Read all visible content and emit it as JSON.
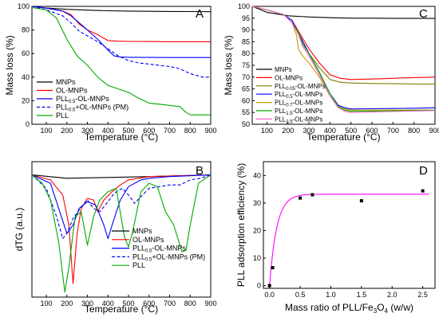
{
  "chart_data": [
    {
      "panel": "A",
      "type": "line",
      "xlabel": "Temperature (°C)",
      "ylabel": "Mass loss (%)",
      "xlim": [
        30,
        900
      ],
      "ylim": [
        0,
        100
      ],
      "xticks": [
        100,
        200,
        300,
        400,
        500,
        600,
        700,
        800,
        900
      ],
      "yticks": [
        0,
        20,
        40,
        60,
        80,
        100
      ],
      "legend_position": "bottom-left",
      "series": [
        {
          "name": "MNPs",
          "color": "#000000",
          "dash": false,
          "x": [
            30,
            100,
            200,
            300,
            400,
            500,
            600,
            700,
            800,
            900
          ],
          "y": [
            100,
            98.6,
            97.5,
            96.8,
            96.3,
            96,
            95.8,
            95.7,
            95.6,
            95.5
          ]
        },
        {
          "name": "OL-MNPs",
          "color": "#ff0000",
          "dash": false,
          "x": [
            30,
            100,
            180,
            220,
            260,
            300,
            350,
            400,
            450,
            500,
            600,
            700,
            800,
            900
          ],
          "y": [
            100,
            98.5,
            96,
            93,
            85,
            80,
            76,
            71,
            70.5,
            70.3,
            70.2,
            70,
            70,
            70
          ]
        },
        {
          "name": "PLL0.5-OL-MNPs",
          "name_main": "PLL",
          "name_sub": "0.5",
          "name_tail": "-OL-MNPs",
          "color": "#0000ff",
          "dash": false,
          "x": [
            30,
            100,
            180,
            220,
            260,
            300,
            350,
            400,
            430,
            460,
            500,
            600,
            700,
            800,
            900
          ],
          "y": [
            100,
            98.5,
            96,
            92,
            86,
            80,
            72,
            63,
            58,
            57,
            56.8,
            56.7,
            56.6,
            56.6,
            56.6
          ]
        },
        {
          "name": "PLL0.5+OL-MNPs (PM)",
          "name_main": "PLL",
          "name_sub": "0.5",
          "name_tail": "+OL-MNPs (PM)",
          "color": "#0000ff",
          "dash": true,
          "x": [
            30,
            100,
            180,
            220,
            260,
            300,
            350,
            400,
            450,
            500,
            550,
            600,
            650,
            700,
            750,
            800,
            860,
            900
          ],
          "y": [
            100,
            97,
            92,
            86,
            79,
            75,
            70,
            64,
            58,
            54,
            52,
            51,
            50,
            49,
            47,
            43,
            40,
            40
          ]
        },
        {
          "name": "PLL",
          "color": "#00aa00",
          "dash": false,
          "x": [
            30,
            100,
            150,
            200,
            250,
            300,
            350,
            400,
            450,
            500,
            550,
            600,
            650,
            700,
            750,
            780,
            800,
            900
          ],
          "y": [
            99,
            97,
            90,
            72,
            58,
            50,
            40,
            33,
            30,
            27,
            22,
            18,
            17,
            16,
            15,
            10,
            8,
            8
          ]
        }
      ]
    },
    {
      "panel": "B",
      "type": "line",
      "xlabel": "Temperature (°C)",
      "ylabel": "dTG (a.u.)",
      "xlim": [
        30,
        900
      ],
      "xticks": [
        100,
        200,
        300,
        400,
        500,
        600,
        700,
        800,
        900
      ],
      "legend_position": "bottom-right",
      "series": [
        {
          "name": "MNPs",
          "color": "#000000",
          "dash": false,
          "x": [
            30,
            200,
            400,
            600,
            900
          ],
          "y": [
            0,
            -0.2,
            -0.15,
            -0.1,
            0
          ]
        },
        {
          "name": "OL-MNPs",
          "color": "#ff0000",
          "dash": false,
          "x": [
            30,
            120,
            180,
            210,
            230,
            250,
            270,
            300,
            330,
            350,
            380,
            420,
            460,
            500,
            600,
            900
          ],
          "y": [
            0,
            -0.3,
            -1.2,
            -3,
            -6.5,
            -3.5,
            -2,
            -1.4,
            -1.5,
            -2.2,
            -1.5,
            -1,
            -0.6,
            -0.3,
            -0.1,
            0
          ]
        },
        {
          "name": "PLL0.5-OL-MNPs",
          "name_main": "PLL",
          "name_sub": "0.5",
          "name_tail": "-OL-MNPs",
          "color": "#0000ff",
          "dash": false,
          "x": [
            30,
            120,
            160,
            200,
            230,
            260,
            300,
            340,
            380,
            400,
            420,
            460,
            500,
            560,
            600,
            700,
            900
          ],
          "y": [
            0,
            -0.5,
            -2,
            -3.5,
            -3,
            -2,
            -1.6,
            -1.8,
            -3,
            -3.8,
            -3,
            -1.5,
            -0.7,
            -0.3,
            -0.2,
            -0.1,
            0
          ]
        },
        {
          "name": "PLL0.5+OL-MNPs (PM)",
          "name_main": "PLL",
          "name_sub": "0.5",
          "name_tail": "+OL-MNPs (PM)",
          "color": "#0000ff",
          "dash": true,
          "x": [
            30,
            100,
            150,
            180,
            200,
            230,
            260,
            300,
            330,
            360,
            400,
            430,
            470,
            500,
            530,
            560,
            600,
            650,
            700,
            750,
            800,
            850,
            900
          ],
          "y": [
            0,
            -0.8,
            -2.5,
            -3.8,
            -3.5,
            -2.6,
            -2.1,
            -1.5,
            -2,
            -2.2,
            -1.6,
            -1.1,
            -0.8,
            -1.2,
            -1.7,
            -1.3,
            -0.8,
            -0.7,
            -0.6,
            -0.6,
            -0.3,
            -0.2,
            0
          ]
        },
        {
          "name": "PLL",
          "color": "#00aa00",
          "dash": false,
          "x": [
            30,
            80,
            120,
            160,
            190,
            210,
            240,
            270,
            300,
            330,
            360,
            400,
            440,
            480,
            500,
            520,
            560,
            600,
            640,
            680,
            720,
            760,
            780,
            800,
            840,
            900
          ],
          "y": [
            0,
            -0.5,
            -1.5,
            -4,
            -7,
            -5.5,
            -2.5,
            -2.2,
            -4.2,
            -2.5,
            -1.5,
            -1,
            -0.8,
            -3.7,
            -4.3,
            -3.4,
            -1,
            -0.5,
            -0.7,
            -2.2,
            -3,
            -4.6,
            -4.5,
            -3,
            -0.5,
            0
          ]
        }
      ]
    },
    {
      "panel": "C",
      "type": "line",
      "xlabel": "Temperature (°C)",
      "ylabel": "Mass loss (%)",
      "xlim": [
        30,
        900
      ],
      "ylim": [
        50,
        100
      ],
      "xticks": [
        100,
        200,
        300,
        400,
        500,
        600,
        700,
        800,
        900
      ],
      "yticks": [
        50,
        55,
        60,
        65,
        70,
        75,
        80,
        85,
        90,
        95,
        100
      ],
      "legend_position": "bottom-left",
      "series": [
        {
          "name": "MNPs",
          "color": "#000000",
          "x": [
            30,
            100,
            200,
            300,
            400,
            500,
            600,
            700,
            800,
            900
          ],
          "y": [
            100,
            97.5,
            96,
            95.5,
            95.2,
            95,
            95,
            94.9,
            94.9,
            94.9
          ]
        },
        {
          "name": "OL-MNPs",
          "color": "#ff0000",
          "x": [
            30,
            100,
            180,
            220,
            260,
            300,
            350,
            400,
            450,
            500,
            600,
            700,
            800,
            900
          ],
          "y": [
            100,
            98.5,
            96.5,
            94,
            88,
            82,
            76,
            71,
            69.5,
            69,
            69.2,
            69.5,
            69.8,
            70
          ]
        },
        {
          "name": "PLL0.05-OL-MNPs",
          "name_main": "PLL",
          "name_sub": "0.05",
          "name_tail": "-OL-MNPs",
          "color": "#808000",
          "x": [
            30,
            100,
            180,
            220,
            260,
            300,
            350,
            400,
            450,
            500,
            600,
            700,
            800,
            900
          ],
          "y": [
            100,
            98.5,
            96.5,
            94,
            87,
            80,
            74,
            69,
            67.8,
            67.5,
            67.3,
            67.2,
            67.1,
            67
          ]
        },
        {
          "name": "PLL0.5-OL-MNPs",
          "name_main": "PLL",
          "name_sub": "0.5",
          "name_tail": "-OL-MNPs",
          "color": "#0000ff",
          "x": [
            30,
            100,
            180,
            220,
            260,
            300,
            350,
            400,
            440,
            470,
            500,
            600,
            700,
            800,
            900
          ],
          "y": [
            100,
            98.5,
            96.5,
            94,
            87,
            80,
            72,
            63,
            58,
            57,
            56.5,
            56.6,
            56.7,
            56.8,
            57
          ]
        },
        {
          "name": "PLL0.7-OL-MNPs",
          "name_main": "PLL",
          "name_sub": "0.7",
          "name_tail": "-OL-MNPs",
          "color": "#cc9900",
          "x": [
            30,
            100,
            180,
            220,
            240,
            250,
            270,
            300,
            350,
            400,
            440,
            470,
            500,
            600,
            700,
            800,
            900
          ],
          "y": [
            100,
            98.5,
            96.5,
            93,
            88,
            82,
            79,
            76,
            70,
            62,
            57.5,
            56.5,
            56,
            56,
            56,
            56,
            56
          ]
        },
        {
          "name": "PLL1.5-OL-MNPs",
          "name_main": "PLL",
          "name_sub": "1.5",
          "name_tail": "-OL-MNPs",
          "color": "#00aa00",
          "x": [
            30,
            100,
            180,
            220,
            250,
            270,
            300,
            350,
            400,
            440,
            470,
            500,
            600,
            700,
            800,
            900
          ],
          "y": [
            100,
            98.5,
            96.5,
            93,
            89,
            84,
            80,
            72,
            63,
            57.5,
            56,
            55.5,
            55.6,
            55.7,
            55.8,
            56
          ]
        },
        {
          "name": "PLL2.5-OL-MNPs",
          "name_main": "PLL",
          "name_sub": "2.5",
          "name_tail": "-OL-MNPs",
          "color": "#ff66cc",
          "x": [
            30,
            100,
            180,
            220,
            250,
            270,
            300,
            350,
            400,
            440,
            470,
            500,
            600,
            700,
            800,
            900
          ],
          "y": [
            100,
            98.5,
            96.5,
            93,
            88,
            83,
            79,
            71,
            62,
            57,
            55.5,
            55,
            55.2,
            55.4,
            55.6,
            55.8
          ]
        }
      ]
    },
    {
      "panel": "D",
      "type": "scatter",
      "xlabel_main": "Mass ratio of PLL/Fe",
      "xlabel_sub": "3",
      "xlabel_mid": "O",
      "xlabel_sub2": "4",
      "xlabel_tail": " (w/w)",
      "ylabel": "PLL adsorption efficiency (%)",
      "xlim": [
        -0.1,
        2.7
      ],
      "ylim": [
        -1,
        45
      ],
      "xticks": [
        0.0,
        0.5,
        1.0,
        1.5,
        2.0,
        2.5
      ],
      "yticks": [
        0,
        10,
        20,
        30,
        40
      ],
      "points": {
        "x": [
          0.0,
          0.05,
          0.5,
          0.7,
          1.5,
          2.5
        ],
        "y": [
          0,
          6.5,
          31.8,
          33,
          30.8,
          34.4
        ]
      },
      "fit": {
        "color": "#ff00ff",
        "type": "exponential",
        "plateau": 33.2,
        "k": 8.5
      }
    }
  ],
  "labels": {
    "A": "A",
    "B": "B",
    "C": "C",
    "D": "D"
  }
}
